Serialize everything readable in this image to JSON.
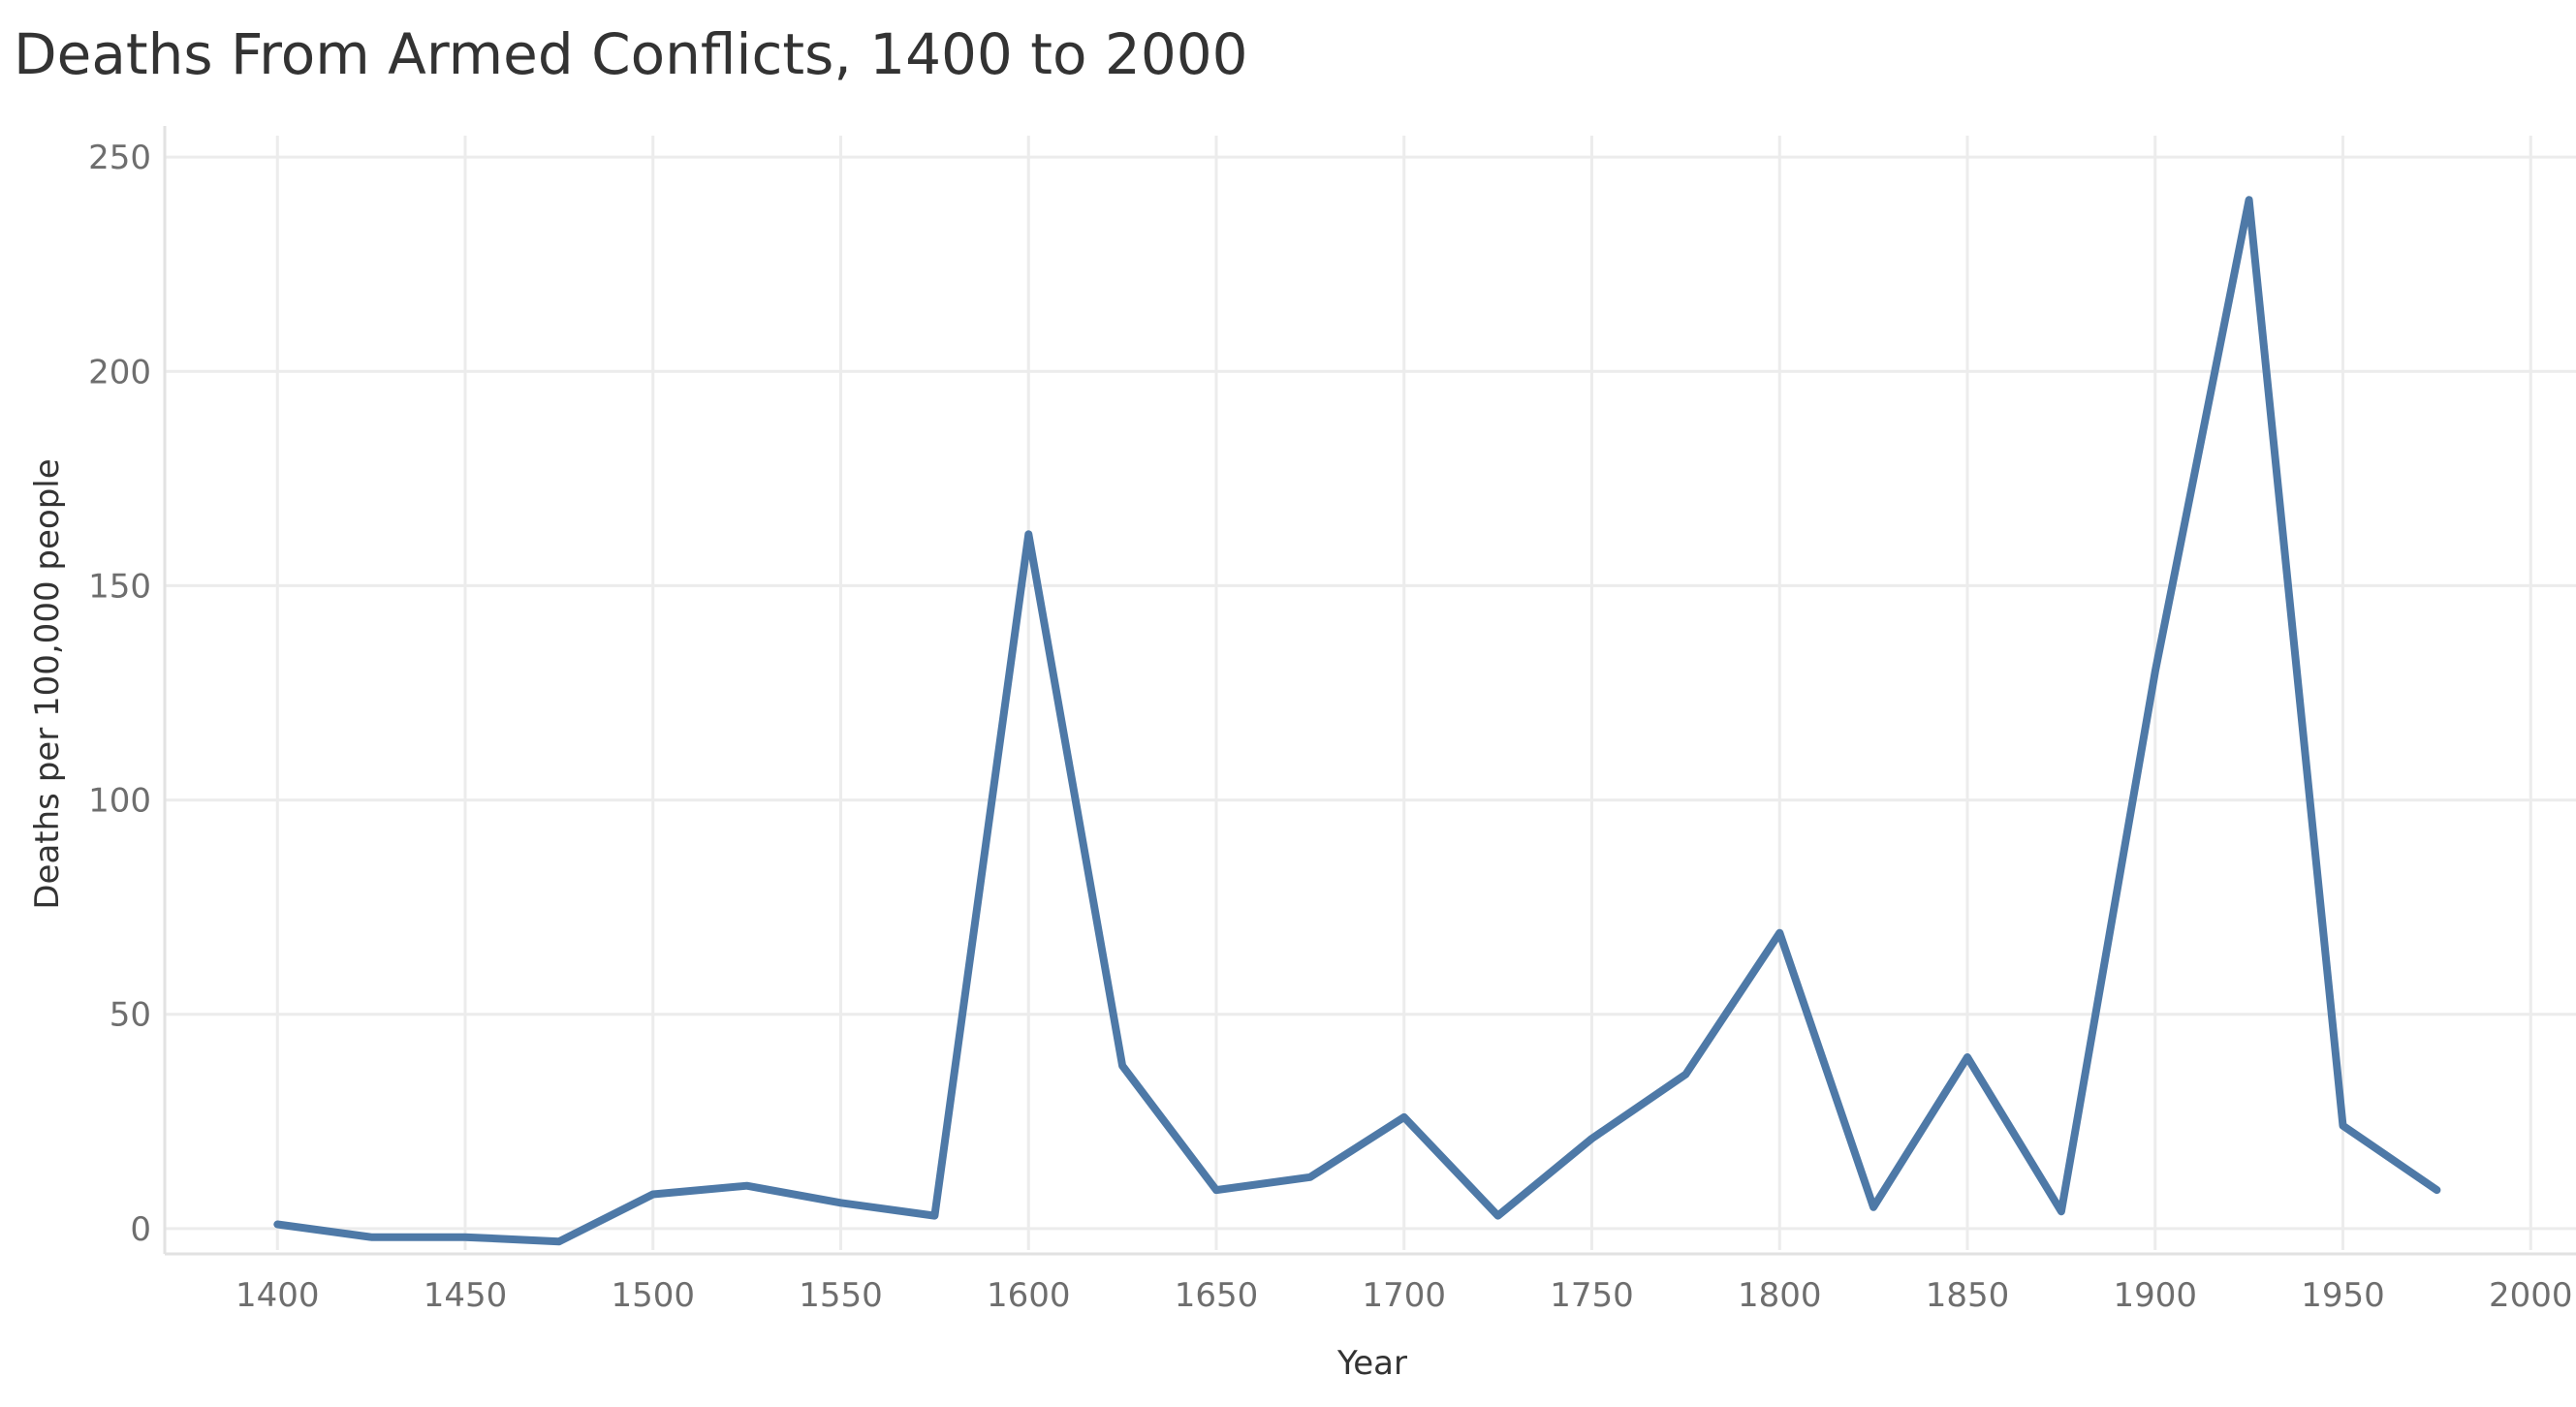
{
  "chart_data": {
    "type": "line",
    "title": "Deaths From Armed Conflicts, 1400 to 2000",
    "xlabel": "Year",
    "ylabel": "Deaths per 100,000 people",
    "xlim": [
      1370,
      2010
    ],
    "ylim": [
      -5,
      255
    ],
    "x_ticks": [
      1400,
      1450,
      1500,
      1550,
      1600,
      1650,
      1700,
      1750,
      1800,
      1850,
      1900,
      1950,
      2000
    ],
    "y_ticks": [
      0,
      50,
      100,
      150,
      200,
      250
    ],
    "grid": true,
    "legend": "none",
    "series": [
      {
        "color": "#4e79a7",
        "x": [
          1400,
          1425,
          1450,
          1475,
          1500,
          1525,
          1550,
          1575,
          1600,
          1625,
          1650,
          1675,
          1700,
          1725,
          1750,
          1775,
          1800,
          1825,
          1850,
          1875,
          1900,
          1925,
          1950,
          1975
        ],
        "y": [
          1,
          -2,
          -2,
          -3,
          8,
          10,
          6,
          3,
          162,
          38,
          9,
          12,
          26,
          3,
          21,
          36,
          69,
          5,
          40,
          4,
          130,
          240,
          24,
          9
        ]
      }
    ]
  },
  "colors": {
    "line": "#4e79a7",
    "grid": "#ececec",
    "tick_text": "#6e6e6e",
    "title_text": "#333333"
  }
}
